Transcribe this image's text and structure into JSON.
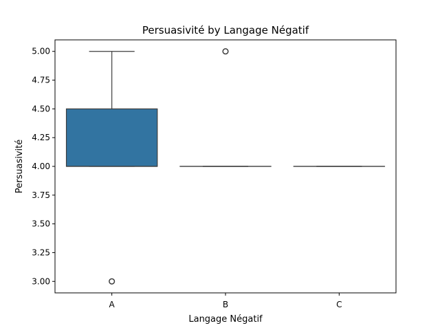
{
  "chart_data": {
    "type": "box",
    "title": "Persuasivité by Langage Négatif",
    "xlabel": "Langage Négatif",
    "ylabel": "Persuasivité",
    "categories": [
      "A",
      "B",
      "C"
    ],
    "ylim": [
      2.9,
      5.1
    ],
    "yticks": [
      3.0,
      3.25,
      3.5,
      3.75,
      4.0,
      4.25,
      4.5,
      4.75,
      5.0
    ],
    "ytick_labels": [
      "3.00",
      "3.25",
      "3.50",
      "3.75",
      "4.00",
      "4.25",
      "4.50",
      "4.75",
      "5.00"
    ],
    "boxes": [
      {
        "category": "A",
        "whisker_low": 4.0,
        "q1": 4.0,
        "median": 4.0,
        "q3": 4.5,
        "whisker_high": 5.0,
        "outliers": [
          3.0
        ]
      },
      {
        "category": "B",
        "whisker_low": 4.0,
        "q1": 4.0,
        "median": 4.0,
        "q3": 4.0,
        "whisker_high": 4.0,
        "outliers": [
          5.0
        ]
      },
      {
        "category": "C",
        "whisker_low": 4.0,
        "q1": 4.0,
        "median": 4.0,
        "q3": 4.0,
        "whisker_high": 4.0,
        "outliers": []
      }
    ],
    "grid": false,
    "colors": {
      "box_fill": "#3274a1",
      "line": "#3d3d3d",
      "axes": "#000000"
    }
  }
}
